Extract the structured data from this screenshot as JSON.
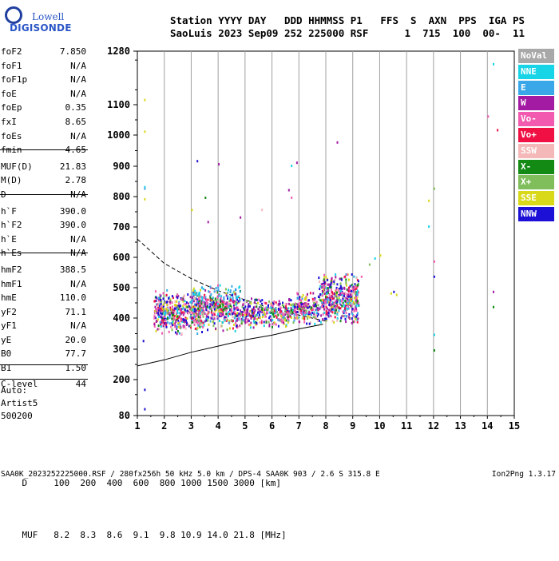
{
  "logo": {
    "line1": "Lowell",
    "line2": "DIGISONDE"
  },
  "header": {
    "line1": "Station YYYY DAY   DDD HHMMSS P1   FFS  S  AXN  PPS  IGA PS",
    "line2": "SaoLuis 2023 Sep09 252 225000 RSF      1  715  100  00-  11"
  },
  "parameters": [
    {
      "name": "foF2",
      "value": "7.850"
    },
    {
      "name": "foF1",
      "value": "N/A"
    },
    {
      "name": "foF1p",
      "value": "N/A"
    },
    {
      "name": "foE",
      "value": "N/A"
    },
    {
      "name": "foEp",
      "value": "0.35"
    },
    {
      "name": "fxI",
      "value": "8.65"
    },
    {
      "name": "foEs",
      "value": "N/A"
    },
    {
      "name": "fmin",
      "value": "4.65"
    },
    {
      "name": "MUF(D)",
      "value": "21.83"
    },
    {
      "name": "M(D)",
      "value": "2.78"
    },
    {
      "name": "D",
      "value": "N/A"
    },
    {
      "name": "h`F",
      "value": "390.0"
    },
    {
      "name": "h`F2",
      "value": "390.0"
    },
    {
      "name": "h`E",
      "value": "N/A"
    },
    {
      "name": "h`Es",
      "value": "N/A"
    },
    {
      "name": "hmF2",
      "value": "388.5"
    },
    {
      "name": "hmF1",
      "value": "N/A"
    },
    {
      "name": "hmE",
      "value": "110.0"
    },
    {
      "name": "yF2",
      "value": "71.1"
    },
    {
      "name": "yF1",
      "value": "N/A"
    },
    {
      "name": "yE",
      "value": "20.0"
    },
    {
      "name": "B0",
      "value": "77.7"
    },
    {
      "name": "B1",
      "value": "1.50"
    },
    {
      "name": "C-level",
      "value": "44"
    }
  ],
  "auto": {
    "line1": "Auto:",
    "line2": "Artist5",
    "line3": "500200"
  },
  "legend": [
    {
      "label": "NoVal",
      "color": "#a8a8a8"
    },
    {
      "label": "NNE",
      "color": "#17d4e6"
    },
    {
      "label": "E",
      "color": "#3aa8e8"
    },
    {
      "label": "W",
      "color": "#a31aa3"
    },
    {
      "label": "Vo-",
      "color": "#f25ab0"
    },
    {
      "label": "Vo+",
      "color": "#f01044"
    },
    {
      "label": "SSW",
      "color": "#f5b8b8"
    },
    {
      "label": "X-",
      "color": "#138a13"
    },
    {
      "label": "X+",
      "color": "#7fbe5a"
    },
    {
      "label": "SSE",
      "color": "#d9d91a"
    },
    {
      "label": "NNW",
      "color": "#1c10d6"
    }
  ],
  "muf_table": {
    "d_label": "D",
    "d_values": [
      "100",
      "200",
      "400",
      "600",
      "800",
      "1000",
      "1500",
      "3000"
    ],
    "d_unit": "[km]",
    "muf_label": "MUF",
    "muf_values": [
      "8.2",
      "8.3",
      "8.6",
      "9.1",
      "9.8",
      "10.9",
      "14.0",
      "21.8"
    ],
    "muf_unit": "[MHz]"
  },
  "footer": {
    "text": "SAA0K_2023252225000.RSF / 280fx256h 50 kHz 5.0 km / DPS-4 SAA0K 903 / 2.6 S 315.8 E",
    "version": "Ion2Png 1.3.17"
  },
  "chart_data": {
    "type": "scatter",
    "title": "",
    "xlabel": "",
    "ylabel": "",
    "xlim": [
      1,
      15
    ],
    "ylim": [
      80,
      1280
    ],
    "x_ticks": [
      1,
      2,
      3,
      4,
      5,
      6,
      7,
      8,
      9,
      10,
      11,
      12,
      13,
      14,
      15
    ],
    "y_ticks": [
      80,
      200,
      300,
      400,
      500,
      600,
      700,
      800,
      900,
      1000,
      1100,
      1280
    ],
    "y_scale": "non-linear",
    "dashed_line": [
      [
        1.0,
        660
      ],
      [
        2.0,
        580
      ],
      [
        3.0,
        530
      ],
      [
        4.0,
        490
      ],
      [
        5.0,
        460
      ],
      [
        6.0,
        430
      ],
      [
        7.0,
        410
      ],
      [
        8.0,
        390
      ]
    ],
    "solid_line": [
      [
        1.0,
        245
      ],
      [
        2.0,
        265
      ],
      [
        3.0,
        290
      ],
      [
        4.0,
        310
      ],
      [
        5.0,
        330
      ],
      [
        6.0,
        345
      ],
      [
        7.0,
        365
      ],
      [
        7.9,
        380
      ]
    ],
    "clusters": [
      {
        "f_range": [
          1.6,
          3.4
        ],
        "h_range": [
          345,
          500
        ]
      },
      {
        "f_range": [
          3.0,
          4.8
        ],
        "h_range": [
          360,
          520
        ]
      },
      {
        "f_range": [
          4.8,
          6.6
        ],
        "h_range": [
          370,
          470
        ]
      },
      {
        "f_range": [
          6.6,
          7.7
        ],
        "h_range": [
          380,
          490
        ]
      },
      {
        "f_range": [
          7.7,
          9.2
        ],
        "h_range": [
          380,
          560
        ]
      }
    ],
    "outliers": [
      {
        "f": 1.25,
        "h": 1120,
        "color": "#d9d91a"
      },
      {
        "f": 1.25,
        "h": 1015,
        "color": "#d9d91a"
      },
      {
        "f": 1.25,
        "h": 835,
        "color": "#17d4e6"
      },
      {
        "f": 1.25,
        "h": 830,
        "color": "#3aa8e8"
      },
      {
        "f": 1.25,
        "h": 795,
        "color": "#d9d91a"
      },
      {
        "f": 1.25,
        "h": 170,
        "color": "#1c10d6"
      },
      {
        "f": 1.25,
        "h": 105,
        "color": "#1c10d6"
      },
      {
        "f": 1.2,
        "h": 330,
        "color": "#1c10d6"
      },
      {
        "f": 3.2,
        "h": 920,
        "color": "#1c10d6"
      },
      {
        "f": 3.0,
        "h": 760,
        "color": "#d9d91a"
      },
      {
        "f": 3.5,
        "h": 800,
        "color": "#138a13"
      },
      {
        "f": 3.6,
        "h": 720,
        "color": "#a31aa3"
      },
      {
        "f": 4.0,
        "h": 910,
        "color": "#a31aa3"
      },
      {
        "f": 4.8,
        "h": 735,
        "color": "#a31aa3"
      },
      {
        "f": 5.6,
        "h": 760,
        "color": "#f5b8b8"
      },
      {
        "f": 6.7,
        "h": 905,
        "color": "#17d4e6"
      },
      {
        "f": 6.9,
        "h": 915,
        "color": "#a31aa3"
      },
      {
        "f": 6.6,
        "h": 825,
        "color": "#a31aa3"
      },
      {
        "f": 6.7,
        "h": 800,
        "color": "#f25ab0"
      },
      {
        "f": 8.4,
        "h": 980,
        "color": "#a31aa3"
      },
      {
        "f": 9.3,
        "h": 540,
        "color": "#f25ab0"
      },
      {
        "f": 9.6,
        "h": 580,
        "color": "#7fbe5a"
      },
      {
        "f": 9.8,
        "h": 600,
        "color": "#17d4e6"
      },
      {
        "f": 10.0,
        "h": 610,
        "color": "#d9d91a"
      },
      {
        "f": 10.4,
        "h": 485,
        "color": "#d9d91a"
      },
      {
        "f": 10.6,
        "h": 480,
        "color": "#d9d91a"
      },
      {
        "f": 10.5,
        "h": 490,
        "color": "#1c10d6"
      },
      {
        "f": 11.8,
        "h": 790,
        "color": "#d9d91a"
      },
      {
        "f": 11.8,
        "h": 705,
        "color": "#17d4e6"
      },
      {
        "f": 12.0,
        "h": 830,
        "color": "#7fbe5a"
      },
      {
        "f": 12.0,
        "h": 590,
        "color": "#f25ab0"
      },
      {
        "f": 12.0,
        "h": 540,
        "color": "#1c10d6"
      },
      {
        "f": 12.0,
        "h": 350,
        "color": "#17d4e6"
      },
      {
        "f": 12.0,
        "h": 300,
        "color": "#138a13"
      },
      {
        "f": 14.2,
        "h": 1240,
        "color": "#17d4e6"
      },
      {
        "f": 14.0,
        "h": 1065,
        "color": "#f25ab0"
      },
      {
        "f": 14.35,
        "h": 1020,
        "color": "#f01044"
      },
      {
        "f": 14.2,
        "h": 490,
        "color": "#a31aa3"
      },
      {
        "f": 14.2,
        "h": 440,
        "color": "#138a13"
      }
    ]
  }
}
